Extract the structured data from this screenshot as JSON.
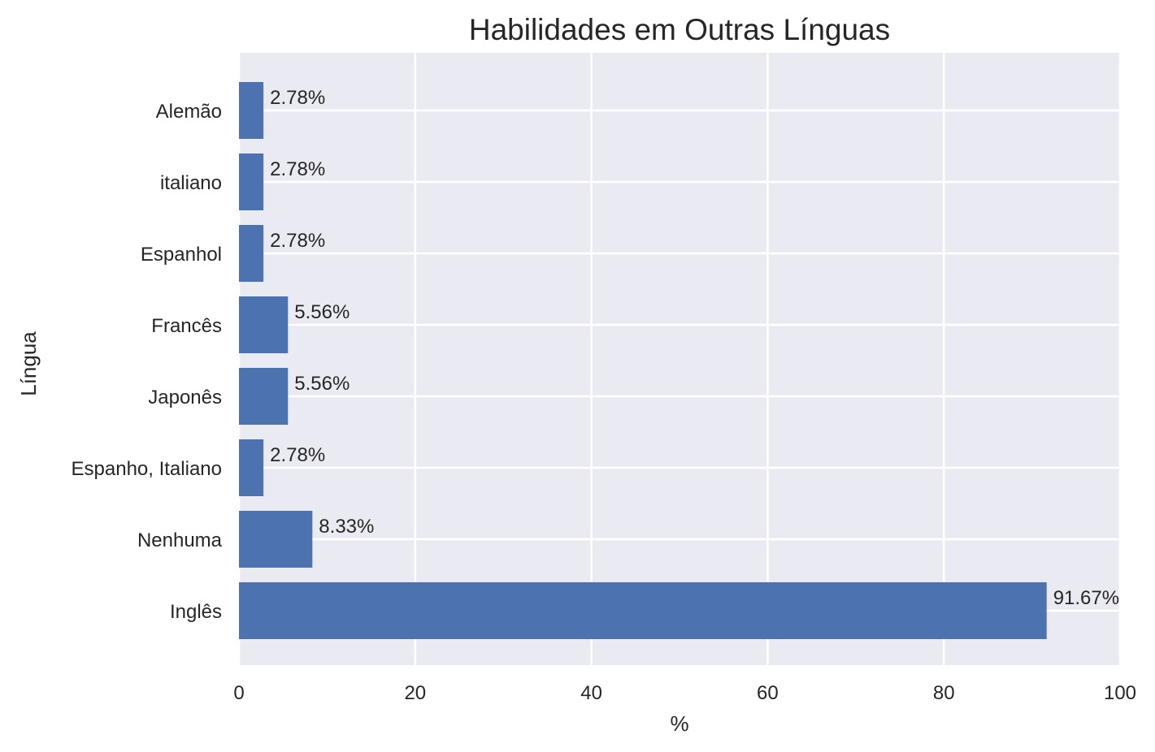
{
  "chart_data": {
    "type": "bar",
    "orientation": "horizontal",
    "title": "Habilidades em Outras Línguas",
    "xlabel": "%",
    "ylabel": "Língua",
    "categories": [
      "Inglês",
      "Nenhuma",
      "Espanho, Italiano",
      "Japonês",
      "Francês",
      "Espanhol",
      "italiano",
      "Alemão"
    ],
    "values": [
      91.67,
      8.33,
      2.78,
      5.56,
      5.56,
      2.78,
      2.78,
      2.78
    ],
    "value_labels": [
      "91.67%",
      "8.33%",
      "2.78%",
      "5.56%",
      "5.56%",
      "2.78%",
      "2.78%",
      "2.78%"
    ],
    "xlim": [
      0,
      100
    ],
    "xticks": [
      "0",
      "20",
      "40",
      "60",
      "80",
      "100"
    ],
    "grid": true,
    "colors": {
      "bar": "#4c72b0",
      "plot_background": "#eaeaf2",
      "grid": "#ffffff",
      "text": "#262626"
    }
  }
}
